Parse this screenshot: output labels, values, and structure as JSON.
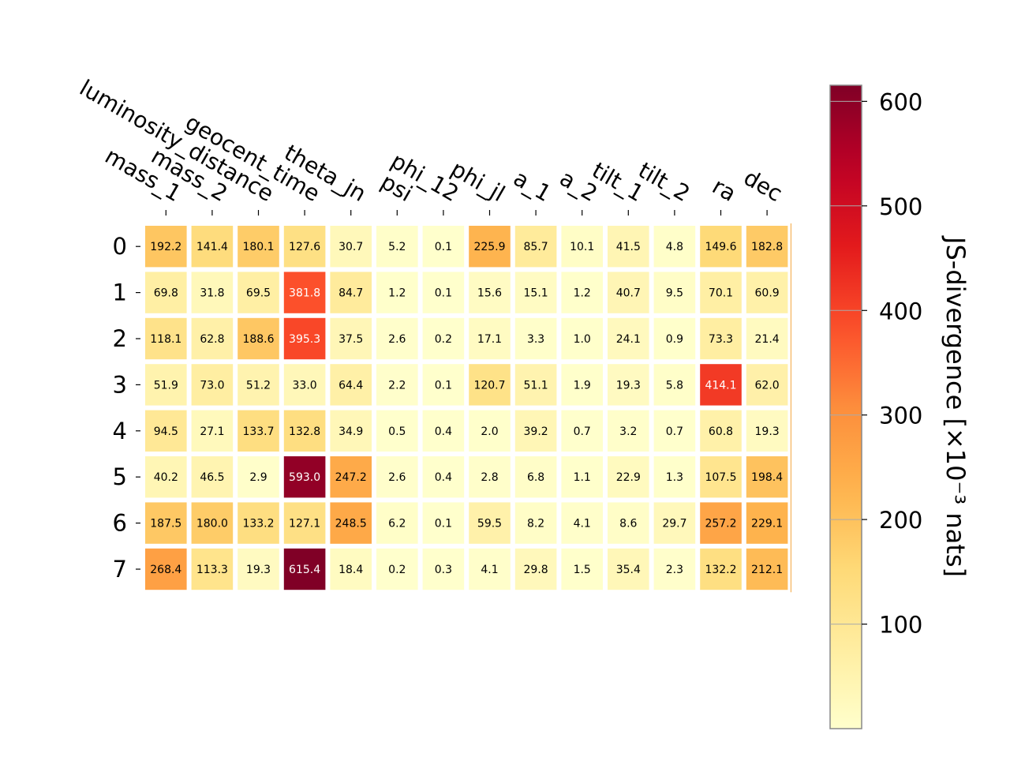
{
  "chart_data": {
    "type": "heatmap",
    "title": "",
    "xlabel": "",
    "ylabel": "",
    "x_categories": [
      "mass_1",
      "mass_2",
      "luminosity_distance",
      "geocent_time",
      "theta_jn",
      "psi",
      "phi_12",
      "phi_jl",
      "a_1",
      "a_2",
      "tilt_1",
      "tilt_2",
      "ra",
      "dec"
    ],
    "y_categories": [
      "0",
      "1",
      "2",
      "3",
      "4",
      "5",
      "6",
      "7"
    ],
    "values": [
      [
        192.2,
        141.4,
        180.1,
        127.6,
        30.7,
        5.2,
        0.1,
        225.9,
        85.7,
        10.1,
        41.5,
        4.8,
        149.6,
        182.8
      ],
      [
        69.8,
        31.8,
        69.5,
        381.8,
        84.7,
        1.2,
        0.1,
        15.6,
        15.1,
        1.2,
        40.7,
        9.5,
        70.1,
        60.9
      ],
      [
        118.1,
        62.8,
        188.6,
        395.3,
        37.5,
        2.6,
        0.2,
        17.1,
        3.3,
        1.0,
        24.1,
        0.9,
        73.3,
        21.4
      ],
      [
        51.9,
        73.0,
        51.2,
        33.0,
        64.4,
        2.2,
        0.1,
        120.7,
        51.1,
        1.9,
        19.3,
        5.8,
        414.1,
        62.0
      ],
      [
        94.5,
        27.1,
        133.7,
        132.8,
        34.9,
        0.5,
        0.4,
        2.0,
        39.2,
        0.7,
        3.2,
        0.7,
        60.8,
        19.3
      ],
      [
        40.2,
        46.5,
        2.9,
        593.0,
        247.2,
        2.6,
        0.4,
        2.8,
        6.8,
        1.1,
        22.9,
        1.3,
        107.5,
        198.4
      ],
      [
        187.5,
        180.0,
        133.2,
        127.1,
        248.5,
        6.2,
        0.1,
        59.5,
        8.2,
        4.1,
        8.6,
        29.7,
        257.2,
        229.1
      ],
      [
        268.4,
        113.3,
        19.3,
        615.4,
        18.4,
        0.2,
        0.3,
        4.1,
        29.8,
        1.5,
        35.4,
        2.3,
        132.2,
        212.1
      ]
    ],
    "colormap": "YlOrRd",
    "colorbar": {
      "label": "JS-divergence [×10⁻³ nats]",
      "ticks": [
        "100",
        "200",
        "300",
        "400",
        "500",
        "600"
      ],
      "range": [
        0,
        615.4
      ]
    },
    "x_tick_position": "top",
    "grid": false
  }
}
